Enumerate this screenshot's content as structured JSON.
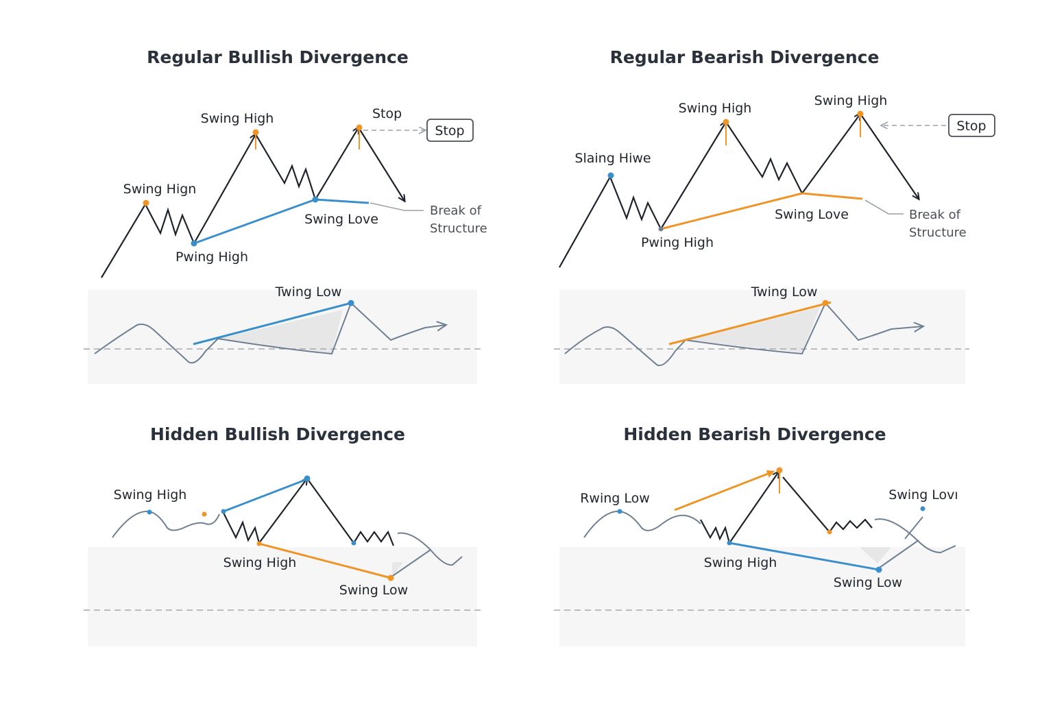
{
  "colors": {
    "bullish_line": "#3a8fcb",
    "bearish_line": "#ef9427",
    "price_line": "#1e232b",
    "oscillator_line": "#6f7f92",
    "panel_bg": "#f6f6f6"
  },
  "panels": [
    {
      "title": "Regular Bullish Divergence",
      "labels": {
        "swing_high_top": "Swing High",
        "swing_high_left": "Swing Hign",
        "swing_low": "Swing Love",
        "pwing_high": "Pwing High",
        "stop_text": "Stop",
        "stop_box": "Stop",
        "break_line1": "Break of",
        "break_line2": "Structure",
        "osc_label": "Twing Low"
      }
    },
    {
      "title": "Regular Bearish Divergence",
      "labels": {
        "swing_high_1": "Swing High",
        "swing_high_2": "Swing High",
        "slaing": "Slaing Hiwe",
        "swing_low": "Swing Love",
        "pwing_high": "Pwing High",
        "stop_box": "Stop",
        "break_line1": "Break of",
        "break_line2": "Structure",
        "osc_label": "Twing Low"
      }
    },
    {
      "title": "Hidden Bullish Divergence",
      "labels": {
        "swing_high_left": "Swing High",
        "swing_high_mid": "Swing High",
        "swing_low": "Swing Low"
      }
    },
    {
      "title": "Hidden Bearish Divergence",
      "labels": {
        "rwing_low": "Rwing Low",
        "swing_low_right": "Swing Lovı",
        "swing_high": "Swing High",
        "swing_low": "Swing Low"
      }
    }
  ]
}
